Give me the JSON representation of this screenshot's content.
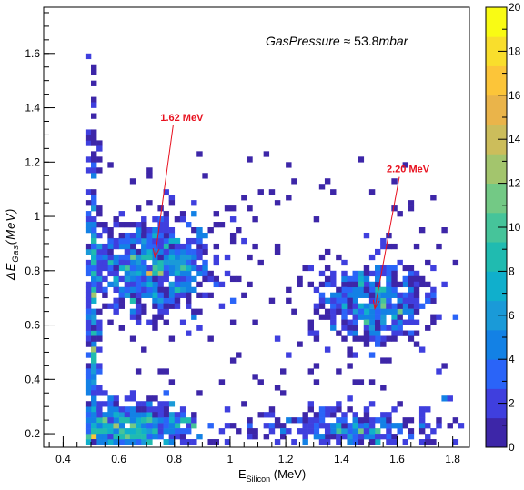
{
  "chart_data": {
    "type": "heatmap",
    "x": {
      "label_main": "E",
      "label_sub": "Silicon",
      "label_unit": " (MeV)",
      "range": [
        0.33,
        1.86
      ],
      "ticks": [
        0.4,
        0.6,
        0.8,
        1.0,
        1.2,
        1.4,
        1.6,
        1.8
      ],
      "tick_labels": [
        "0.4",
        "0.6",
        "0.8",
        "1",
        "1.2",
        "1.4",
        "1.6",
        "1.8"
      ]
    },
    "y": {
      "label_main": "ΔE",
      "label_sub": "Gas",
      "label_unit": "(MeV)",
      "range": [
        0.15,
        1.77
      ],
      "ticks": [
        0.2,
        0.4,
        0.6,
        0.8,
        1.0,
        1.2,
        1.4,
        1.6
      ],
      "tick_labels": [
        "0.2",
        "0.4",
        "0.6",
        "0.8",
        "1",
        "1.2",
        "1.4",
        "1.6"
      ]
    },
    "colorbar": {
      "range": [
        0,
        20
      ],
      "ticks": [
        0,
        2,
        4,
        6,
        8,
        10,
        12,
        14,
        16,
        18,
        20
      ],
      "tick_labels": [
        "0",
        "2",
        "4",
        "6",
        "8",
        "10",
        "12",
        "14",
        "16",
        "18",
        "20"
      ],
      "palette": [
        "#3d26a8",
        "#3f3fde",
        "#2a64f8",
        "#1381e5",
        "#1a9ad8",
        "#10afcc",
        "#20bbb0",
        "#46c49a",
        "#73c985",
        "#a3c56d",
        "#ccbd5b",
        "#eab44a",
        "#fcc539",
        "#f9de2c",
        "#f9fb14"
      ]
    },
    "annotation": {
      "text_main": "GasPressure",
      "text_rest": " ≈ 53.8",
      "text_unit": "mbar"
    },
    "peaks": [
      {
        "label": "1.62 MeV",
        "x": 0.73,
        "y": 0.85
      },
      {
        "label": "2.20 MeV",
        "x": 1.52,
        "y": 0.66
      }
    ],
    "clusters": [
      {
        "x": 0.73,
        "y": 0.82,
        "sx": 0.11,
        "sy": 0.09,
        "peak": 14,
        "n": 650
      },
      {
        "x": 1.52,
        "y": 0.68,
        "sx": 0.1,
        "sy": 0.08,
        "peak": 10,
        "n": 420
      },
      {
        "x": 0.62,
        "y": 0.22,
        "sx": 0.14,
        "sy": 0.05,
        "peak": 16,
        "n": 600
      },
      {
        "x": 1.45,
        "y": 0.22,
        "sx": 0.17,
        "sy": 0.04,
        "peak": 7,
        "n": 260
      },
      {
        "x": 0.505,
        "y": 0.55,
        "sx": 0.012,
        "sy": 0.4,
        "peak": 8,
        "n": 260
      }
    ]
  }
}
